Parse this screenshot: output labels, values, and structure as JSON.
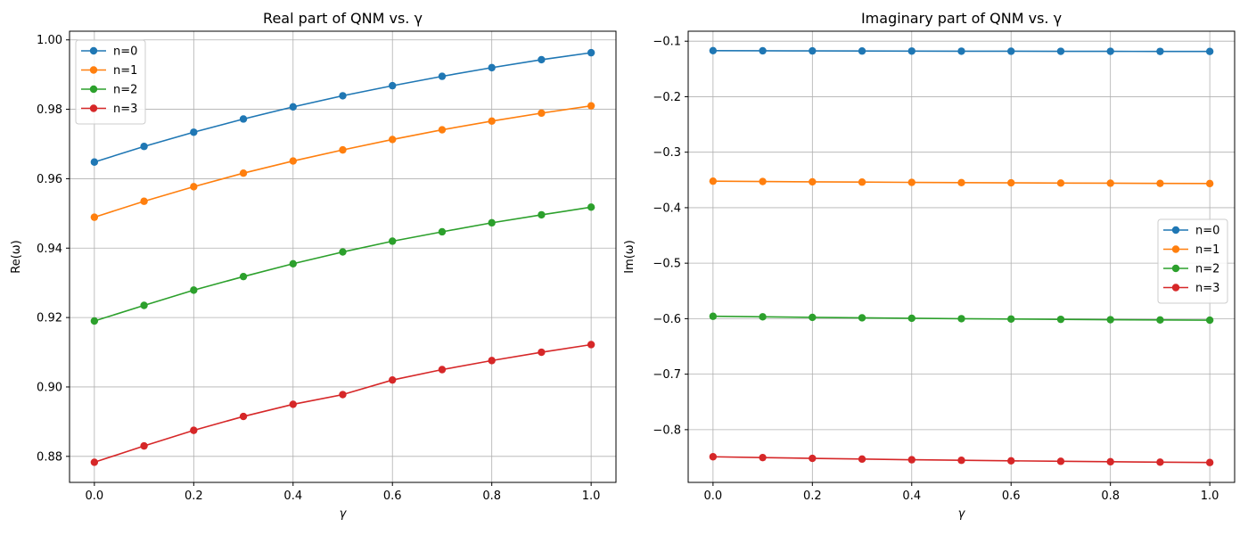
{
  "chart_data": [
    {
      "type": "line",
      "title": "Real part of QNM vs. γ",
      "xlabel": "γ",
      "ylabel": "Re(ω)",
      "x": [
        0.0,
        0.1,
        0.2,
        0.3,
        0.4,
        0.5,
        0.6,
        0.7,
        0.8,
        0.9,
        1.0
      ],
      "xlim": [
        -0.05,
        1.05
      ],
      "ylim": [
        0.8725,
        1.0025
      ],
      "xticks": [
        0.0,
        0.2,
        0.4,
        0.6,
        0.8,
        1.0
      ],
      "xtick_labels": [
        "0.0",
        "0.2",
        "0.4",
        "0.6",
        "0.8",
        "1.0"
      ],
      "yticks": [
        0.88,
        0.9,
        0.92,
        0.94,
        0.96,
        0.98,
        1.0
      ],
      "ytick_labels": [
        "0.88",
        "0.90",
        "0.92",
        "0.94",
        "0.96",
        "0.98",
        "1.00"
      ],
      "grid": true,
      "legend": "upper-left",
      "series": [
        {
          "name": "n=0",
          "color": "#1f77b4",
          "values": [
            0.9648,
            0.9693,
            0.9734,
            0.9772,
            0.9807,
            0.9839,
            0.9868,
            0.9895,
            0.992,
            0.9943,
            0.9963
          ]
        },
        {
          "name": "n=1",
          "color": "#ff7f0e",
          "values": [
            0.9489,
            0.9535,
            0.9577,
            0.9616,
            0.9651,
            0.9683,
            0.9713,
            0.9741,
            0.9766,
            0.9789,
            0.981
          ]
        },
        {
          "name": "n=2",
          "color": "#2ca02c",
          "values": [
            0.919,
            0.9235,
            0.9279,
            0.9318,
            0.9355,
            0.9389,
            0.942,
            0.9447,
            0.9473,
            0.9496,
            0.9518
          ]
        },
        {
          "name": "n=3",
          "color": "#d62728",
          "values": [
            0.8783,
            0.883,
            0.8875,
            0.8915,
            0.895,
            0.8978,
            0.902,
            0.905,
            0.9076,
            0.91,
            0.9122
          ]
        }
      ]
    },
    {
      "type": "line",
      "title": "Imaginary part of QNM vs. γ",
      "xlabel": "γ",
      "ylabel": "Im(ω)",
      "x": [
        0.0,
        0.1,
        0.2,
        0.3,
        0.4,
        0.5,
        0.6,
        0.7,
        0.8,
        0.9,
        1.0
      ],
      "xlim": [
        -0.05,
        1.05
      ],
      "ylim": [
        -0.895,
        -0.082
      ],
      "xticks": [
        0.0,
        0.2,
        0.4,
        0.6,
        0.8,
        1.0
      ],
      "xtick_labels": [
        "0.0",
        "0.2",
        "0.4",
        "0.6",
        "0.8",
        "1.0"
      ],
      "yticks": [
        -0.8,
        -0.7,
        -0.6,
        -0.5,
        -0.4,
        -0.3,
        -0.2,
        -0.1
      ],
      "ytick_labels": [
        "−0.8",
        "−0.7",
        "−0.6",
        "−0.5",
        "−0.4",
        "−0.3",
        "−0.2",
        "−0.1"
      ],
      "grid": true,
      "legend": "center-right",
      "series": [
        {
          "name": "n=0",
          "color": "#1f77b4",
          "values": [
            -0.117,
            -0.1173,
            -0.1175,
            -0.1177,
            -0.1178,
            -0.118,
            -0.1181,
            -0.1182,
            -0.1183,
            -0.1184,
            -0.1185
          ]
        },
        {
          "name": "n=1",
          "color": "#ff7f0e",
          "values": [
            -0.3522,
            -0.3528,
            -0.3534,
            -0.3539,
            -0.3544,
            -0.3548,
            -0.3552,
            -0.3556,
            -0.3559,
            -0.3562,
            -0.3565
          ]
        },
        {
          "name": "n=2",
          "color": "#2ca02c",
          "values": [
            -0.5957,
            -0.5967,
            -0.5977,
            -0.5985,
            -0.5993,
            -0.6,
            -0.6006,
            -0.6012,
            -0.6018,
            -0.6023,
            -0.6027
          ]
        },
        {
          "name": "n=3",
          "color": "#d62728",
          "values": [
            -0.8488,
            -0.8503,
            -0.8517,
            -0.853,
            -0.8542,
            -0.8552,
            -0.8561,
            -0.857,
            -0.8578,
            -0.8585,
            -0.8592
          ]
        }
      ]
    }
  ]
}
